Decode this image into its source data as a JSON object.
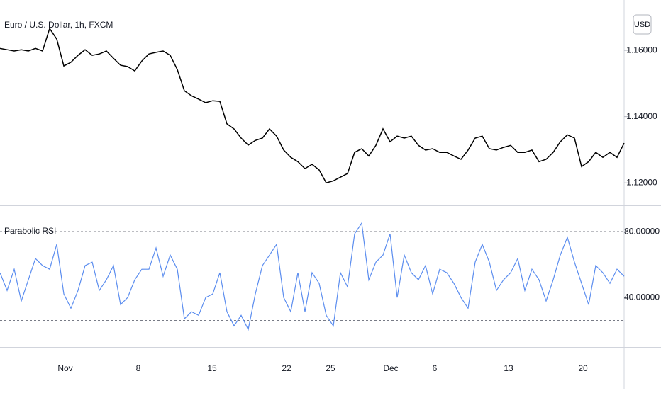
{
  "xaxis": {
    "xlim": [
      0,
      88
    ],
    "xticks": [
      {
        "value": 9.2,
        "label": "Nov"
      },
      {
        "value": 19.5,
        "label": "8"
      },
      {
        "value": 29.9,
        "label": "15"
      },
      {
        "value": 40.4,
        "label": "22"
      },
      {
        "value": 46.6,
        "label": "25"
      },
      {
        "value": 55.1,
        "label": "Dec"
      },
      {
        "value": 61.3,
        "label": "6"
      },
      {
        "value": 71.7,
        "label": "13"
      },
      {
        "value": 82.2,
        "label": "20"
      }
    ]
  },
  "chart_data": [
    {
      "type": "line",
      "title": "Euro / U.S. Dollar, 1h, FXCM",
      "currency": "USD",
      "ylim": [
        1.1132,
        1.1752
      ],
      "yticks": [
        {
          "value": 1.12,
          "label": "1.12000"
        },
        {
          "value": 1.14,
          "label": "1.14000"
        },
        {
          "value": 1.16,
          "label": "1.16000"
        }
      ],
      "series": [
        {
          "color": "#000000",
          "values": [
            1.1606,
            1.1602,
            1.1598,
            1.1602,
            1.1598,
            1.1606,
            1.1598,
            1.1666,
            1.1634,
            1.1553,
            1.1564,
            1.1585,
            1.1602,
            1.1585,
            1.1589,
            1.1598,
            1.1576,
            1.1555,
            1.1551,
            1.1538,
            1.1568,
            1.1589,
            1.1594,
            1.1598,
            1.1585,
            1.1542,
            1.1478,
            1.1463,
            1.1453,
            1.1442,
            1.1448,
            1.1446,
            1.1378,
            1.1363,
            1.1335,
            1.1314,
            1.1328,
            1.1335,
            1.1363,
            1.1341,
            1.1299,
            1.1277,
            1.1264,
            1.1243,
            1.1256,
            1.1239,
            1.12,
            1.1206,
            1.1217,
            1.1228,
            1.1292,
            1.1303,
            1.1281,
            1.1313,
            1.1363,
            1.1324,
            1.1341,
            1.1335,
            1.1341,
            1.1313,
            1.1299,
            1.1303,
            1.1292,
            1.1292,
            1.1281,
            1.1271,
            1.1299,
            1.1335,
            1.1341,
            1.1303,
            1.1299,
            1.1307,
            1.1313,
            1.1292,
            1.1292,
            1.1299,
            1.1264,
            1.1271,
            1.1292,
            1.1324,
            1.1345,
            1.1335,
            1.1249,
            1.1264,
            1.1292,
            1.1277,
            1.1292,
            1.1277,
            1.132
          ]
        }
      ]
    },
    {
      "type": "line",
      "title": "Parabolic RSI",
      "ylim": [
        10,
        96
      ],
      "yticks": [
        {
          "value": 40,
          "label": "40.00000"
        },
        {
          "value": 80,
          "label": "80.00000"
        }
      ],
      "levels": [
        80,
        26
      ],
      "series": [
        {
          "color": "#5b8def",
          "values": [
            55.1,
            44.3,
            57.2,
            37.9,
            50.8,
            63.7,
            59.4,
            57.2,
            72.3,
            42.2,
            33.5,
            44.3,
            59.4,
            61.5,
            44.3,
            50.8,
            59.4,
            35.7,
            40.0,
            50.8,
            57.2,
            57.2,
            70.1,
            52.9,
            65.8,
            57.2,
            27.1,
            31.4,
            29.2,
            40.0,
            42.2,
            55.1,
            31.4,
            22.8,
            29.2,
            20.6,
            42.2,
            59.4,
            65.8,
            72.3,
            40.0,
            31.4,
            55.1,
            31.4,
            55.1,
            48.6,
            29.2,
            22.8,
            55.1,
            46.5,
            78.7,
            85.2,
            50.8,
            61.5,
            65.8,
            78.7,
            40.0,
            65.8,
            55.1,
            50.8,
            59.4,
            42.2,
            57.2,
            55.1,
            48.6,
            40.0,
            33.5,
            61.5,
            72.3,
            61.5,
            44.3,
            50.8,
            55.1,
            63.7,
            44.3,
            57.2,
            50.8,
            37.9,
            50.8,
            65.8,
            76.6,
            61.5,
            48.6,
            35.7,
            59.4,
            55.1,
            48.6,
            57.2,
            52.9
          ]
        }
      ]
    }
  ]
}
